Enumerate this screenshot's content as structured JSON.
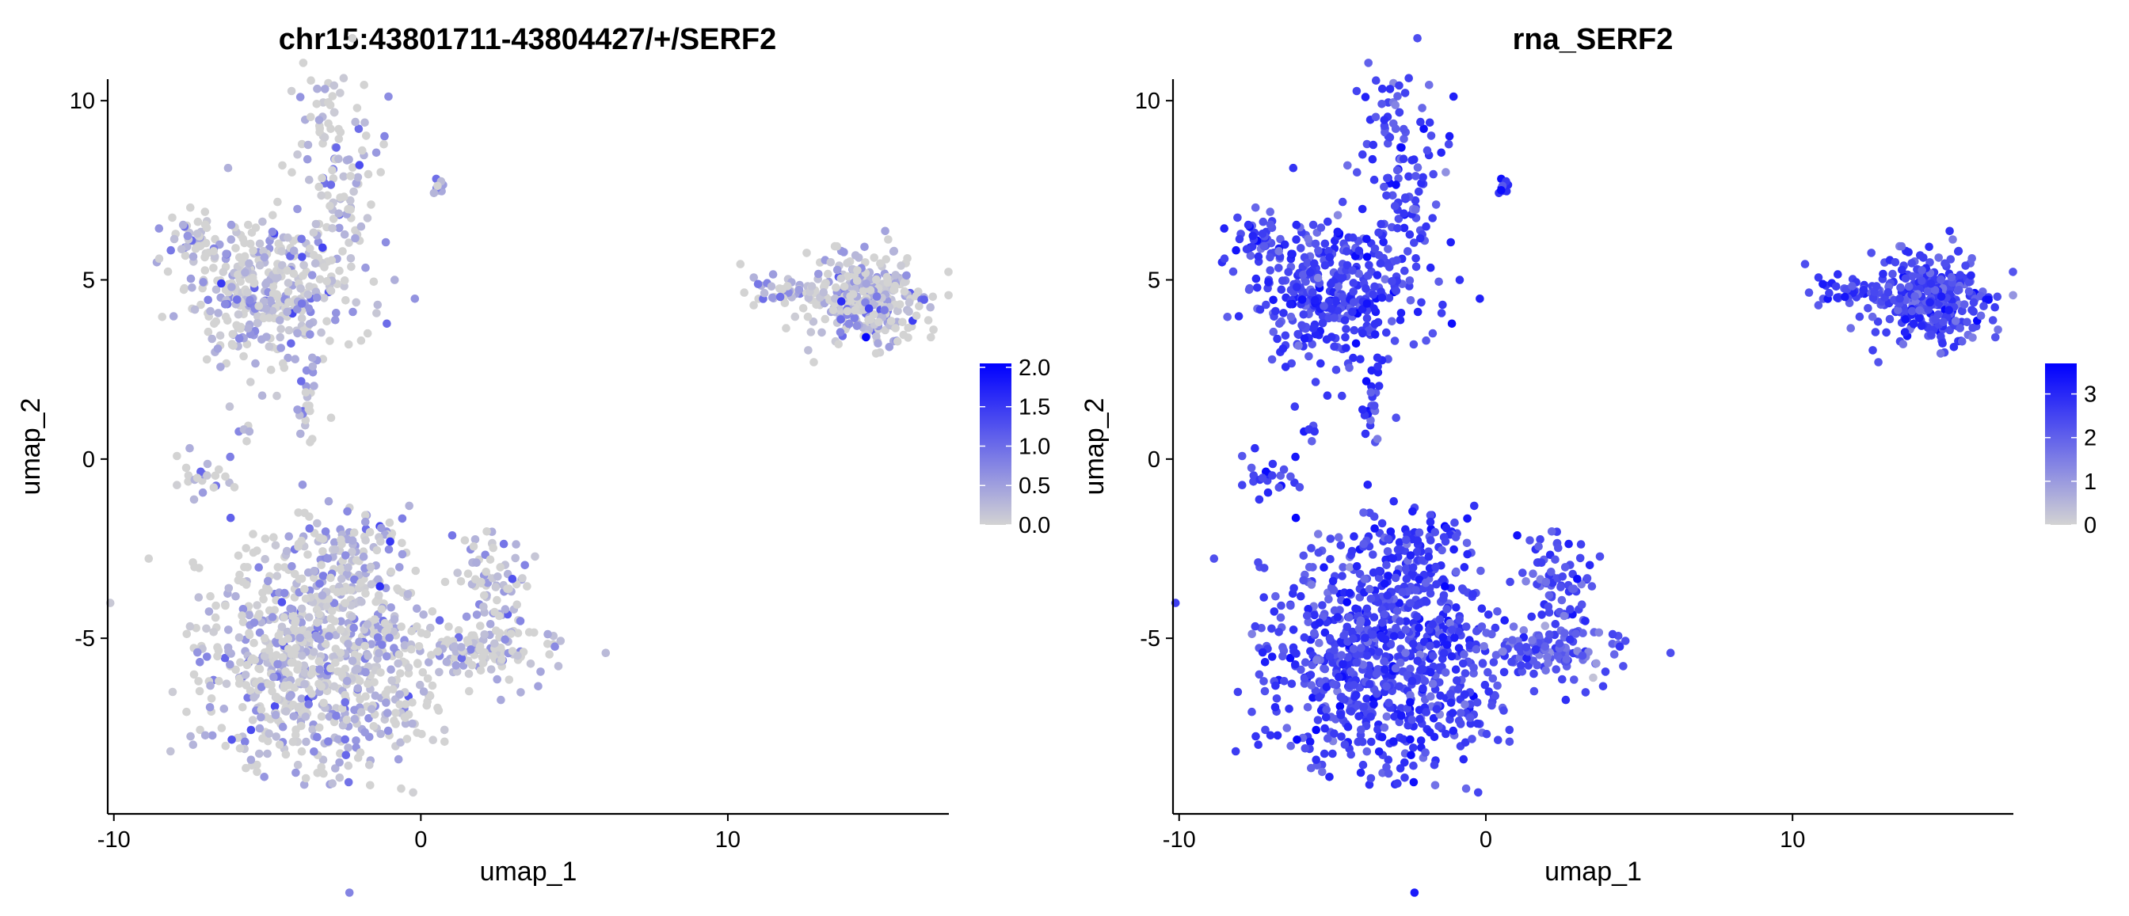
{
  "chart_data": [
    {
      "type": "scatter",
      "title": "chr15:43801711-43804427/+/SERF2",
      "xlabel": "umap_1",
      "ylabel": "umap_2",
      "xlim": [
        -10.2,
        17.2
      ],
      "ylim": [
        -9.9,
        10.6
      ],
      "x_ticks": [
        {
          "value": -10,
          "label": "-10"
        },
        {
          "value": 0,
          "label": "0"
        },
        {
          "value": 10,
          "label": "10"
        }
      ],
      "y_ticks": [
        {
          "value": -5,
          "label": "-5"
        },
        {
          "value": 0,
          "label": "0"
        },
        {
          "value": 5,
          "label": "5"
        },
        {
          "value": 10,
          "label": "10"
        }
      ],
      "grid": false,
      "color_scale": {
        "low": "#d3d3d3",
        "high": "#0000ff",
        "min": 0,
        "max": 2.05
      },
      "legend": {
        "position": "right",
        "ticks": [
          {
            "value": 0.0,
            "label": "0.0"
          },
          {
            "value": 0.5,
            "label": "0.5"
          },
          {
            "value": 1.0,
            "label": "1.0"
          },
          {
            "value": 1.5,
            "label": "1.5"
          },
          {
            "value": 2.0,
            "label": "2.0"
          }
        ]
      },
      "expression_profile": {
        "base": 0.08,
        "spread": 0.45,
        "cap": 2.05
      },
      "highlight_points": [
        {
          "x": 14.5,
          "y": 3.4,
          "value": 2.0
        },
        {
          "x": 13.7,
          "y": 4.4,
          "value": 1.6
        },
        {
          "x": -6.5,
          "y": 4.9,
          "value": 1.5
        },
        {
          "x": -3.2,
          "y": 5.9,
          "value": 1.4
        },
        {
          "x": -2.0,
          "y": 8.2,
          "value": 1.3
        },
        {
          "x": -1.0,
          "y": -2.3,
          "value": 1.5
        },
        {
          "x": 14.6,
          "y": 4.2,
          "value": 1.4
        }
      ]
    },
    {
      "type": "scatter",
      "title": "rna_SERF2",
      "xlabel": "umap_1",
      "ylabel": "umap_2",
      "xlim": [
        -10.2,
        17.2
      ],
      "ylim": [
        -9.9,
        10.6
      ],
      "x_ticks": [
        {
          "value": -10,
          "label": "-10"
        },
        {
          "value": 0,
          "label": "0"
        },
        {
          "value": 10,
          "label": "10"
        }
      ],
      "y_ticks": [
        {
          "value": -5,
          "label": "-5"
        },
        {
          "value": 0,
          "label": "0"
        },
        {
          "value": 5,
          "label": "5"
        },
        {
          "value": 10,
          "label": "10"
        }
      ],
      "grid": false,
      "color_scale": {
        "low": "#d3d3d3",
        "high": "#0000ff",
        "min": 0,
        "max": 3.7
      },
      "legend": {
        "position": "right",
        "ticks": [
          {
            "value": 0,
            "label": "0"
          },
          {
            "value": 1,
            "label": "1"
          },
          {
            "value": 2,
            "label": "2"
          },
          {
            "value": 3,
            "label": "3"
          }
        ]
      },
      "expression_profile": {
        "base": 2.55,
        "spread": 0.45,
        "cap": 3.6
      },
      "highlight_points": [
        {
          "x": 3.5,
          "y": -6.1,
          "value": 0.3
        },
        {
          "x": 3.6,
          "y": -5.7,
          "value": 1.0
        },
        {
          "x": 0.5,
          "y": 7.5,
          "value": 3.5
        }
      ]
    }
  ],
  "clusters": [
    {
      "id": "top-left-stem",
      "cx": -2.8,
      "cy": 8.2,
      "sx": 0.75,
      "sy": 1.3,
      "n": 110,
      "factor": 1.0
    },
    {
      "id": "top-left-body",
      "cx": -4.8,
      "cy": 4.6,
      "sx": 1.35,
      "sy": 1.0,
      "n": 360,
      "factor": 1.0
    },
    {
      "id": "top-left-wing",
      "cx": -7.2,
      "cy": 6.1,
      "sx": 0.55,
      "sy": 0.45,
      "n": 45,
      "factor": 1.0
    },
    {
      "id": "center-dot",
      "cx": 0.5,
      "cy": 7.6,
      "sx": 0.12,
      "sy": 0.12,
      "n": 8,
      "factor": 1.0
    },
    {
      "id": "thin-bridge",
      "cx": -3.7,
      "cy": 1.6,
      "sx": 0.18,
      "sy": 0.65,
      "n": 24,
      "factor": 1.0
    },
    {
      "id": "left-tail",
      "cx": -7.2,
      "cy": -0.4,
      "sx": 0.55,
      "sy": 0.35,
      "n": 24,
      "factor": 1.0
    },
    {
      "id": "small-pair",
      "cx": -5.7,
      "cy": 0.85,
      "sx": 0.15,
      "sy": 0.1,
      "n": 5,
      "factor": 1.0
    },
    {
      "id": "bottom-main",
      "cx": -3.3,
      "cy": -5.6,
      "sx": 1.95,
      "sy": 1.55,
      "n": 820,
      "factor": 1.0
    },
    {
      "id": "bottom-upper",
      "cx": -2.5,
      "cy": -2.4,
      "sx": 1.0,
      "sy": 0.55,
      "n": 80,
      "factor": 1.0
    },
    {
      "id": "right-loop",
      "cx": 2.4,
      "cy": -3.6,
      "sx": 0.55,
      "sy": 0.85,
      "n": 80,
      "factor": 0.9
    },
    {
      "id": "right-arm",
      "cx": 2.1,
      "cy": -5.3,
      "sx": 1.25,
      "sy": 0.35,
      "n": 120,
      "factor": 0.85
    },
    {
      "id": "far-right-blob",
      "cx": 14.4,
      "cy": 4.5,
      "sx": 1.05,
      "sy": 0.65,
      "n": 320,
      "factor": 0.95
    },
    {
      "id": "far-right-tail",
      "cx": 11.8,
      "cy": 4.7,
      "sx": 0.8,
      "sy": 0.2,
      "n": 35,
      "factor": 0.95
    }
  ]
}
